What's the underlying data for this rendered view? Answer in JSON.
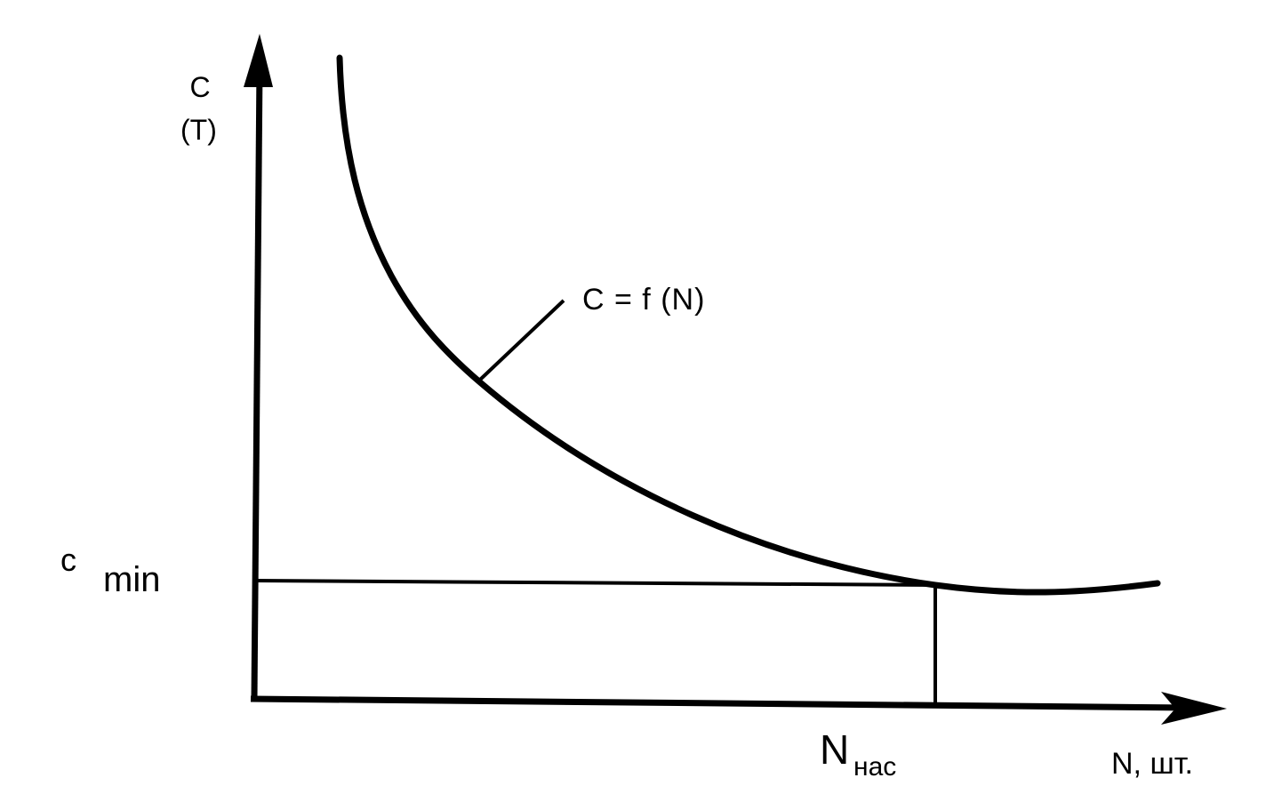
{
  "y_axis": {
    "label": "C",
    "unit": "(T)"
  },
  "x_axis": {
    "label": "N, шт."
  },
  "curve": {
    "label": "C = f (N)"
  },
  "c_min": {
    "symbol": "c",
    "subscript": "min"
  },
  "n_sat": {
    "symbol": "N",
    "subscript": "нас"
  }
}
